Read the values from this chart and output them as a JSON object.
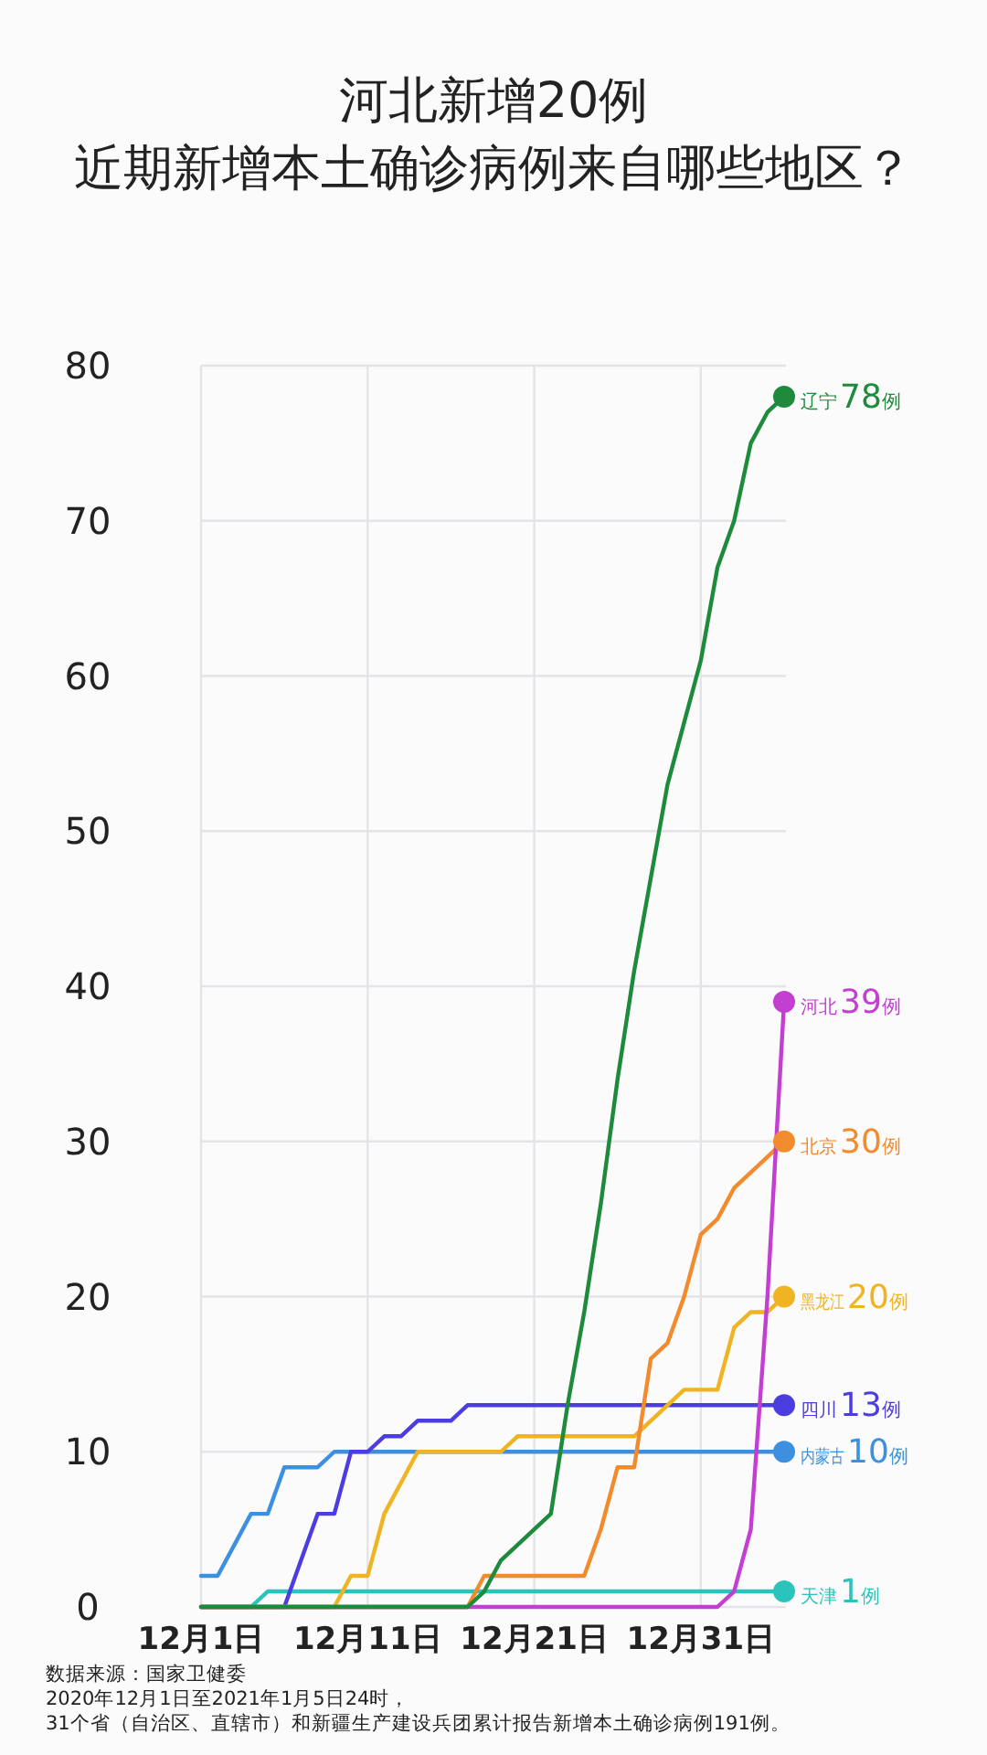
{
  "chart_data": {
    "type": "line",
    "title": "河北新增20例",
    "subtitle": "近期新增本土确诊病例来自哪些地区？",
    "xlim": [
      "2020-12-01",
      "2021-01-05"
    ],
    "xticks": [
      {
        "value": "2020-12-01",
        "label": "12月1日"
      },
      {
        "value": "2020-12-11",
        "label": "12月11日"
      },
      {
        "value": "2020-12-21",
        "label": "12月21日"
      },
      {
        "value": "2020-12-31",
        "label": "12月31日"
      }
    ],
    "ylim": [
      0,
      80
    ],
    "yticks": [
      0,
      10,
      20,
      30,
      40,
      50,
      60,
      70,
      80
    ],
    "grid": true,
    "series": [
      {
        "name": "辽宁",
        "color": "#1e8a3c",
        "x": [
          "2020-12-01",
          "2020-12-17",
          "2020-12-18",
          "2020-12-19",
          "2020-12-20",
          "2020-12-21",
          "2020-12-22",
          "2020-12-23",
          "2020-12-24",
          "2020-12-25",
          "2020-12-26",
          "2020-12-27",
          "2020-12-28",
          "2020-12-29",
          "2020-12-30",
          "2020-12-31",
          "2021-01-01",
          "2021-01-02",
          "2021-01-03",
          "2021-01-04",
          "2021-01-05"
        ],
        "values": [
          0,
          0,
          1,
          3,
          4,
          5,
          6,
          13,
          19,
          26,
          34,
          41,
          47,
          53,
          57,
          61,
          67,
          70,
          75,
          77,
          78
        ],
        "value_labels": [
          null,
          null,
          null,
          null,
          null,
          null,
          null,
          null,
          null,
          null,
          null,
          null,
          null,
          null,
          null,
          null,
          null,
          null,
          null,
          null,
          "78例"
        ]
      },
      {
        "name": "河北",
        "color": "#c23fd1",
        "x": [
          "2020-12-01",
          "2021-01-01",
          "2021-01-02",
          "2021-01-03",
          "2021-01-04",
          "2021-01-05"
        ],
        "values": [
          0,
          0,
          1,
          5,
          20,
          39
        ],
        "value_labels": [
          null,
          null,
          null,
          null,
          null,
          "39例"
        ]
      },
      {
        "name": "北京",
        "color": "#f28a2e",
        "x": [
          "2020-12-01",
          "2020-12-17",
          "2020-12-18",
          "2020-12-24",
          "2020-12-25",
          "2020-12-26",
          "2020-12-27",
          "2020-12-28",
          "2020-12-29",
          "2020-12-30",
          "2020-12-31",
          "2021-01-01",
          "2021-01-02",
          "2021-01-03",
          "2021-01-04",
          "2021-01-05"
        ],
        "values": [
          0,
          0,
          2,
          2,
          5,
          9,
          9,
          16,
          17,
          20,
          24,
          25,
          27,
          28,
          29,
          30
        ],
        "value_labels": [
          null,
          null,
          null,
          null,
          null,
          null,
          null,
          null,
          null,
          null,
          null,
          null,
          null,
          null,
          null,
          "30例"
        ]
      },
      {
        "name": "黑龙江",
        "color": "#f0b321",
        "x": [
          "2020-12-01",
          "2020-12-09",
          "2020-12-10",
          "2020-12-11",
          "2020-12-12",
          "2020-12-13",
          "2020-12-14",
          "2020-12-19",
          "2020-12-20",
          "2020-12-27",
          "2020-12-28",
          "2020-12-29",
          "2020-12-30",
          "2021-01-01",
          "2021-01-02",
          "2021-01-03",
          "2021-01-04",
          "2021-01-05"
        ],
        "values": [
          0,
          0,
          2,
          2,
          6,
          8,
          10,
          10,
          11,
          11,
          12,
          13,
          14,
          14,
          18,
          19,
          19,
          20
        ],
        "value_labels": [
          null,
          null,
          null,
          null,
          null,
          null,
          null,
          null,
          null,
          null,
          null,
          null,
          null,
          null,
          null,
          null,
          null,
          "20例"
        ]
      },
      {
        "name": "四川",
        "color": "#4b3de0",
        "x": [
          "2020-12-01",
          "2020-12-06",
          "2020-12-07",
          "2020-12-08",
          "2020-12-09",
          "2020-12-10",
          "2020-12-11",
          "2020-12-12",
          "2020-12-13",
          "2020-12-14",
          "2020-12-15",
          "2020-12-16",
          "2020-12-17",
          "2021-01-05"
        ],
        "values": [
          0,
          0,
          3,
          6,
          6,
          10,
          10,
          11,
          11,
          12,
          12,
          12,
          13,
          13
        ],
        "value_labels": [
          null,
          null,
          null,
          null,
          null,
          null,
          null,
          null,
          null,
          null,
          null,
          null,
          null,
          "13例"
        ]
      },
      {
        "name": "内蒙古",
        "color": "#3d90e0",
        "x": [
          "2020-12-01",
          "2020-12-02",
          "2020-12-03",
          "2020-12-04",
          "2020-12-05",
          "2020-12-06",
          "2020-12-07",
          "2020-12-08",
          "2020-12-09",
          "2021-01-05"
        ],
        "values": [
          2,
          2,
          4,
          6,
          6,
          9,
          9,
          9,
          10,
          10
        ],
        "value_labels": [
          null,
          null,
          null,
          null,
          null,
          null,
          null,
          null,
          null,
          "10例"
        ]
      },
      {
        "name": "天津",
        "color": "#2bc3bc",
        "x": [
          "2020-12-01",
          "2020-12-04",
          "2020-12-05",
          "2021-01-05"
        ],
        "values": [
          0,
          0,
          1,
          1
        ],
        "value_labels": [
          null,
          null,
          null,
          "1例"
        ]
      }
    ],
    "annotations": [
      "数据来源：国家卫健委",
      "2020年12月1日至2021年1月5日24时，",
      "31个省（自治区、直辖市）和新疆生产建设兵团累计报告新增本土确诊病例191例。"
    ]
  }
}
